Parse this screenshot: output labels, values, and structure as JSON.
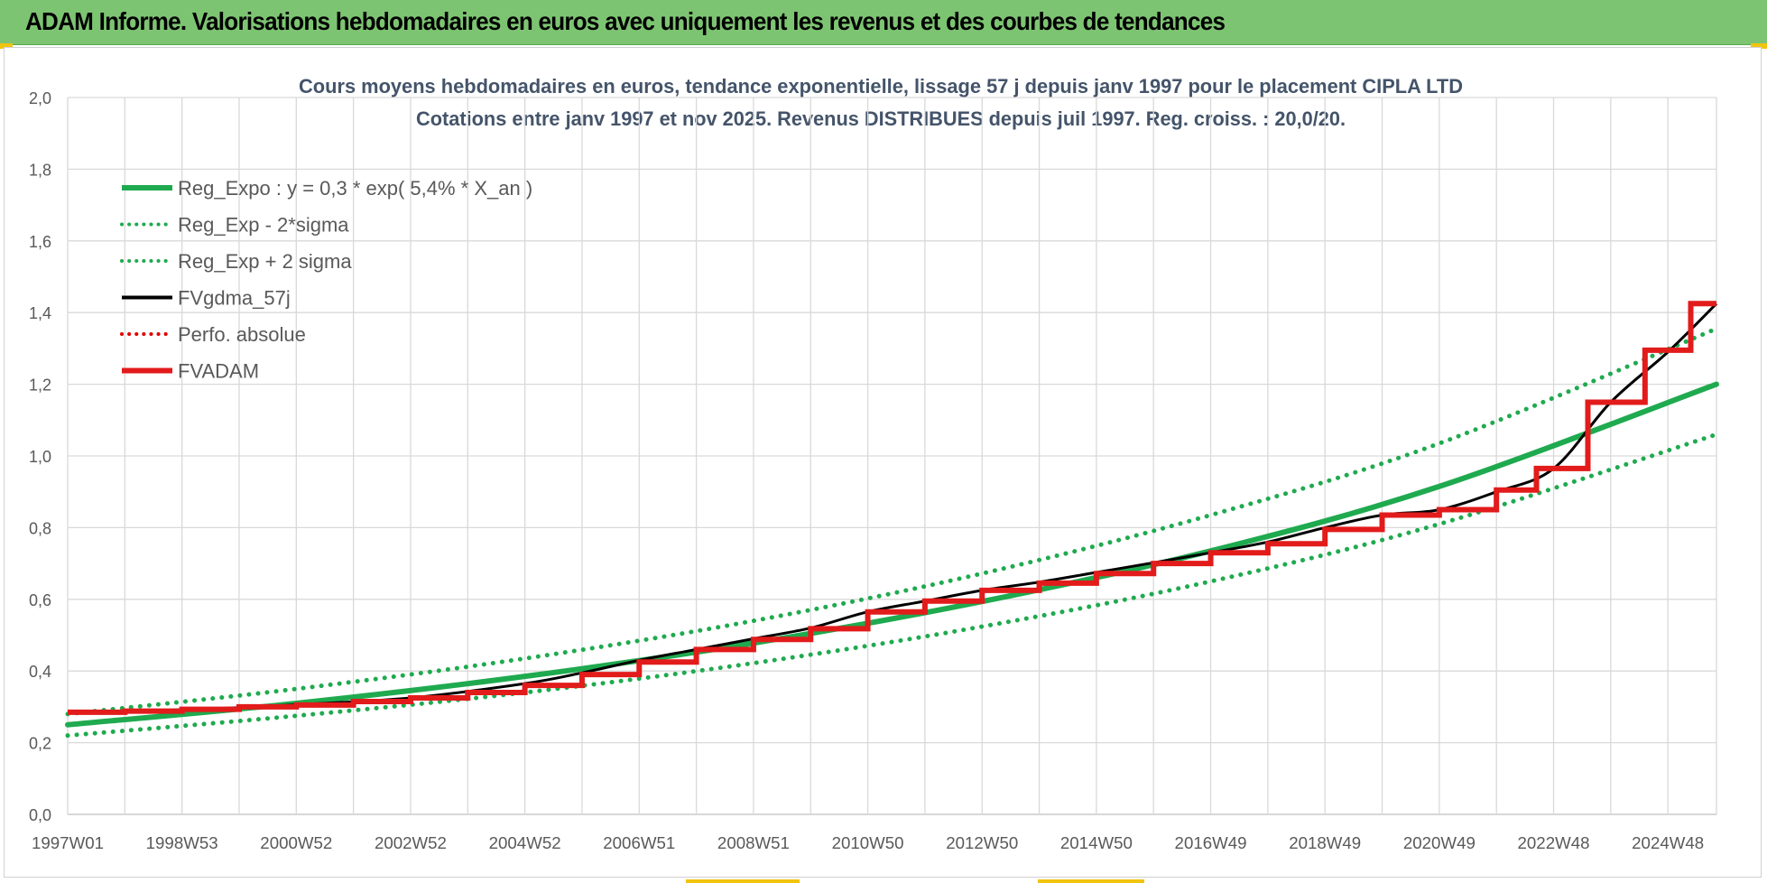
{
  "banner": {
    "title": "ADAM Informe. Valorisations hebdomadaires en euros avec uniquement les revenus et des courbes de tendances"
  },
  "chart_data": {
    "type": "line",
    "title_lines": [
      "Cours moyens hebdomadaires en euros, tendance exponentielle, lissage 57 j depuis janv 1997 pour le placement CIPLA LTD",
      "Cotations entre janv 1997 et nov 2025. Revenus DISTRIBUES depuis juil 1997. Reg. croiss. : 20,0/20."
    ],
    "xlabel": "",
    "ylabel": "",
    "x_range": [
      1997.0,
      2025.85
    ],
    "ylim": [
      0,
      2
    ],
    "y_ticks": [
      "0,0",
      "0,2",
      "0,4",
      "0,6",
      "0,8",
      "1,0",
      "1,2",
      "1,4",
      "1,6",
      "1,8",
      "2,0"
    ],
    "x_ticks": [
      {
        "label": "1997W01",
        "x": 1997.0
      },
      {
        "label": "1998W53",
        "x": 1999.0
      },
      {
        "label": "2000W52",
        "x": 2001.0
      },
      {
        "label": "2002W52",
        "x": 2003.0
      },
      {
        "label": "2004W52",
        "x": 2005.0
      },
      {
        "label": "2006W51",
        "x": 2007.0
      },
      {
        "label": "2008W51",
        "x": 2009.0
      },
      {
        "label": "2010W50",
        "x": 2011.0
      },
      {
        "label": "2012W50",
        "x": 2013.0
      },
      {
        "label": "2014W50",
        "x": 2015.0
      },
      {
        "label": "2016W49",
        "x": 2017.0
      },
      {
        "label": "2018W49",
        "x": 2019.0
      },
      {
        "label": "2020W49",
        "x": 2021.0
      },
      {
        "label": "2022W48",
        "x": 2023.0
      },
      {
        "label": "2024W48",
        "x": 2025.0
      }
    ],
    "grid": true,
    "legend_position": "top-left",
    "series": [
      {
        "name": "Reg_Expo : y = 0,3 * exp( 5,4% *  X_an )",
        "style": "solid",
        "color": "#1faa4f",
        "points": [
          [
            1997.0,
            0.25
          ],
          [
            2001.0,
            0.31
          ],
          [
            2005.0,
            0.385
          ],
          [
            2009.0,
            0.478
          ],
          [
            2013.0,
            0.594
          ],
          [
            2017.0,
            0.735
          ],
          [
            2021.0,
            0.915
          ],
          [
            2025.85,
            1.2
          ]
        ]
      },
      {
        "name": "Reg_Exp - 2*sigma",
        "style": "dotted",
        "color": "#1faa4f",
        "points": [
          [
            1997.0,
            0.22
          ],
          [
            2001.0,
            0.275
          ],
          [
            2005.0,
            0.34
          ],
          [
            2009.0,
            0.422
          ],
          [
            2013.0,
            0.524
          ],
          [
            2017.0,
            0.65
          ],
          [
            2021.0,
            0.81
          ],
          [
            2025.85,
            1.06
          ]
        ]
      },
      {
        "name": "Reg_Exp + 2 sigma",
        "style": "dotted",
        "color": "#1faa4f",
        "points": [
          [
            1997.0,
            0.28
          ],
          [
            2001.0,
            0.35
          ],
          [
            2005.0,
            0.435
          ],
          [
            2009.0,
            0.54
          ],
          [
            2013.0,
            0.672
          ],
          [
            2017.0,
            0.835
          ],
          [
            2021.0,
            1.035
          ],
          [
            2025.85,
            1.355
          ]
        ]
      },
      {
        "name": "FVgdma_57j",
        "style": "solid",
        "color": "#000000",
        "points": [
          [
            1997.0,
            0.285
          ],
          [
            1998.0,
            0.288
          ],
          [
            1999.0,
            0.292
          ],
          [
            2000.0,
            0.298
          ],
          [
            2001.0,
            0.306
          ],
          [
            2003.0,
            0.325
          ],
          [
            2005.0,
            0.365
          ],
          [
            2006.0,
            0.395
          ],
          [
            2007.0,
            0.43
          ],
          [
            2008.0,
            0.46
          ],
          [
            2009.0,
            0.49
          ],
          [
            2010.0,
            0.52
          ],
          [
            2011.0,
            0.565
          ],
          [
            2012.0,
            0.595
          ],
          [
            2013.0,
            0.625
          ],
          [
            2014.0,
            0.648
          ],
          [
            2015.0,
            0.675
          ],
          [
            2016.0,
            0.702
          ],
          [
            2017.0,
            0.73
          ],
          [
            2018.0,
            0.76
          ],
          [
            2019.0,
            0.8
          ],
          [
            2020.0,
            0.835
          ],
          [
            2021.0,
            0.85
          ],
          [
            2022.0,
            0.9
          ],
          [
            2023.0,
            0.965
          ],
          [
            2024.0,
            1.15
          ],
          [
            2025.0,
            1.29
          ],
          [
            2025.85,
            1.425
          ]
        ]
      },
      {
        "name": "Perfo. absolue",
        "style": "dotted",
        "color": "#e00000",
        "points": []
      },
      {
        "name": "FVADAM",
        "style": "step",
        "color": "#e21b1b",
        "points": [
          [
            1997.0,
            0.285
          ],
          [
            1998.0,
            0.288
          ],
          [
            1999.0,
            0.293
          ],
          [
            2000.0,
            0.3
          ],
          [
            2001.0,
            0.305
          ],
          [
            2002.0,
            0.315
          ],
          [
            2003.0,
            0.325
          ],
          [
            2004.0,
            0.34
          ],
          [
            2005.0,
            0.36
          ],
          [
            2006.0,
            0.39
          ],
          [
            2007.0,
            0.425
          ],
          [
            2008.0,
            0.46
          ],
          [
            2009.0,
            0.488
          ],
          [
            2010.0,
            0.518
          ],
          [
            2011.0,
            0.565
          ],
          [
            2012.0,
            0.595
          ],
          [
            2013.0,
            0.625
          ],
          [
            2014.0,
            0.645
          ],
          [
            2015.0,
            0.672
          ],
          [
            2016.0,
            0.7
          ],
          [
            2017.0,
            0.73
          ],
          [
            2018.0,
            0.755
          ],
          [
            2019.0,
            0.795
          ],
          [
            2020.0,
            0.835
          ],
          [
            2021.0,
            0.85
          ],
          [
            2022.0,
            0.905
          ],
          [
            2022.7,
            0.965
          ],
          [
            2023.6,
            1.15
          ],
          [
            2024.6,
            1.295
          ],
          [
            2025.4,
            1.425
          ],
          [
            2025.85,
            1.425
          ]
        ]
      }
    ]
  }
}
